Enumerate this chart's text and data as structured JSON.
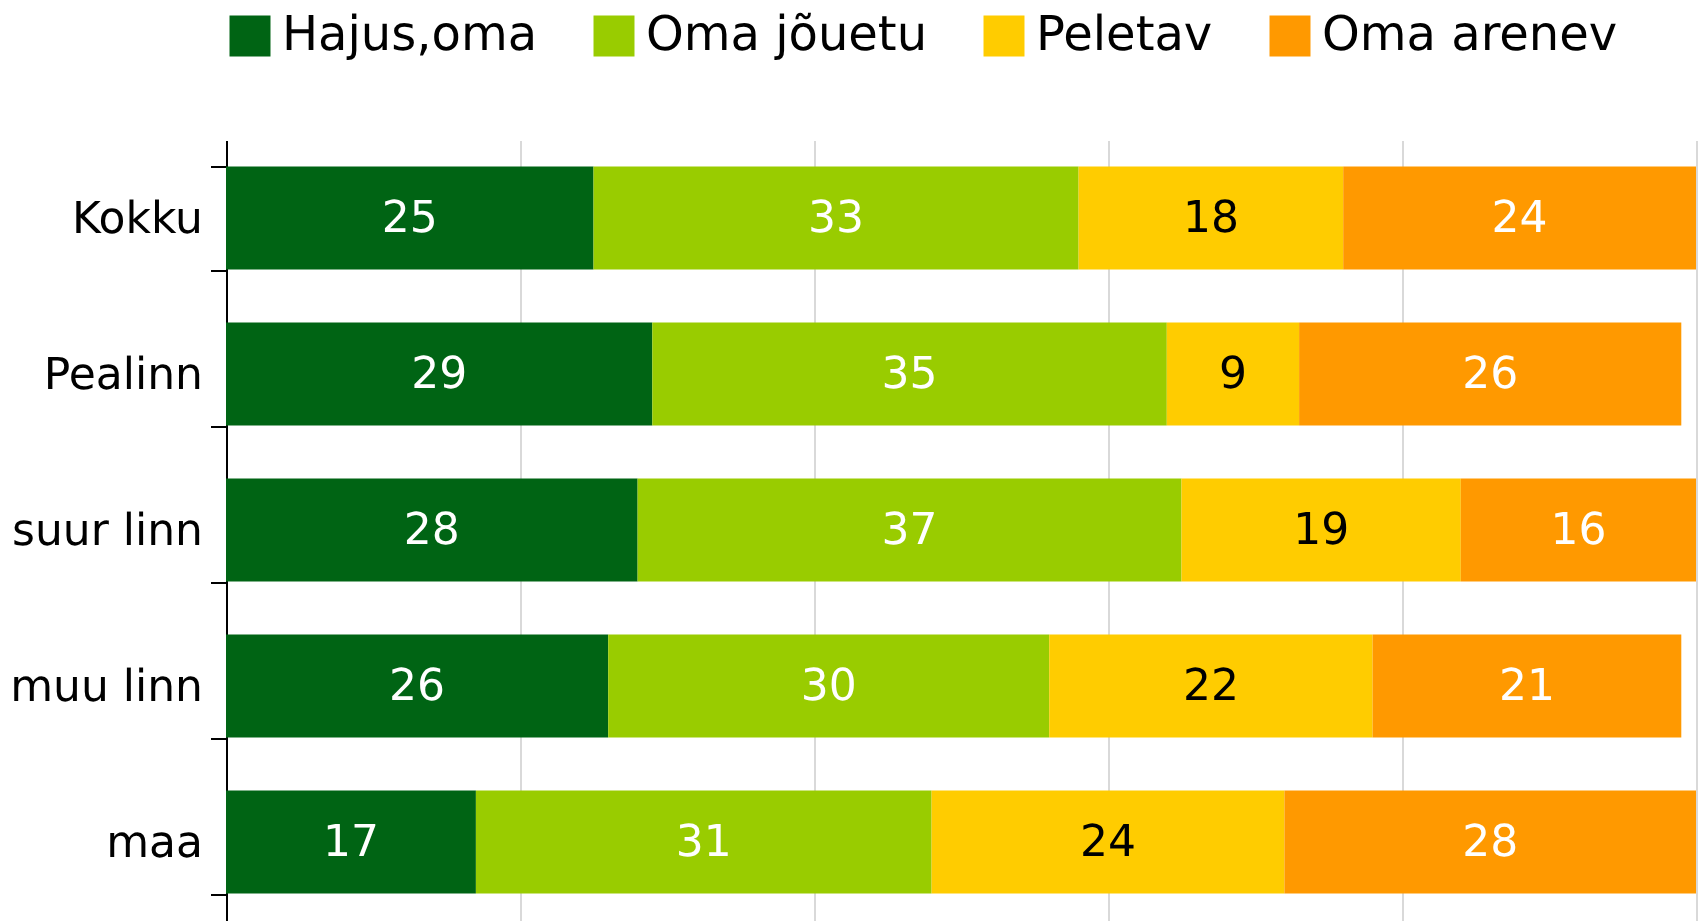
{
  "chart_data": {
    "type": "bar",
    "orientation": "horizontal",
    "stacked": true,
    "categories": [
      "Kokku",
      "Pealinn",
      "suur linn",
      "muu linn",
      "maa"
    ],
    "series": [
      {
        "name": "Hajus,oma",
        "color": "#006414",
        "values": [
          25,
          29,
          28,
          26,
          17
        ]
      },
      {
        "name": "Oma jõuetu",
        "color": "#99cc00",
        "values": [
          33,
          35,
          37,
          30,
          31
        ]
      },
      {
        "name": "Peletav",
        "color": "#ffcc00",
        "values": [
          18,
          9,
          19,
          22,
          24
        ]
      },
      {
        "name": "Oma arenev",
        "color": "#ff9900",
        "values": [
          24,
          26,
          16,
          21,
          28
        ]
      }
    ],
    "xlim": [
      0,
      100
    ],
    "xticks": [
      {
        "value": 0,
        "label": null
      },
      {
        "value": 20,
        "label": null
      },
      {
        "value": 40,
        "label": null
      },
      {
        "value": 60,
        "label": null
      },
      {
        "value": 80,
        "label": null
      },
      {
        "value": 100,
        "label": null
      }
    ],
    "grid": "x",
    "legend": "top left",
    "data_labels": true,
    "tick_labels": "y"
  }
}
